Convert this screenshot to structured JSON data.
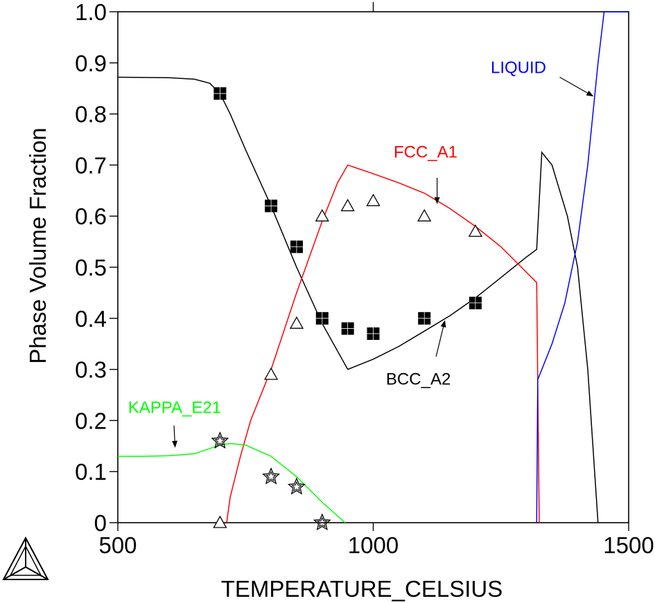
{
  "chart_data": {
    "type": "line",
    "xlabel": "TEMPERATURE_CELSIUS",
    "ylabel": "Phase Volume Fraction",
    "xlim": [
      500,
      1500
    ],
    "ylim": [
      0,
      1.0
    ],
    "x_ticks": [
      500,
      1000,
      1500
    ],
    "x_tick_labels": [
      "500",
      "1000",
      "1500"
    ],
    "y_ticks": [
      0,
      0.1,
      0.2,
      0.3,
      0.4,
      0.5,
      0.6,
      0.7,
      0.8,
      0.9,
      1.0
    ],
    "y_tick_labels": [
      "0",
      "0.1",
      "0.2",
      "0.3",
      "0.4",
      "0.5",
      "0.6",
      "0.7",
      "0.8",
      "0.9",
      "1.0"
    ],
    "grid": false,
    "series": [
      {
        "name": "BCC_A2",
        "color": "#000000",
        "label_at": [
          1025,
          0.27
        ],
        "arrow_from": [
          1123,
          0.325
        ],
        "arrow_to": [
          1140,
          0.395
        ],
        "points": [
          [
            500,
            0.872
          ],
          [
            600,
            0.871
          ],
          [
            650,
            0.868
          ],
          [
            680,
            0.86
          ],
          [
            700,
            0.84
          ],
          [
            720,
            0.8
          ],
          [
            750,
            0.73
          ],
          [
            800,
            0.62
          ],
          [
            850,
            0.5
          ],
          [
            900,
            0.39
          ],
          [
            950,
            0.3
          ],
          [
            1000,
            0.32
          ],
          [
            1050,
            0.345
          ],
          [
            1100,
            0.375
          ],
          [
            1150,
            0.405
          ],
          [
            1200,
            0.44
          ],
          [
            1250,
            0.48
          ],
          [
            1300,
            0.52
          ],
          [
            1320,
            0.535
          ],
          [
            1330,
            0.725
          ],
          [
            1350,
            0.7
          ],
          [
            1380,
            0.6
          ],
          [
            1400,
            0.5
          ],
          [
            1420,
            0.3
          ],
          [
            1440,
            0.0
          ]
        ]
      },
      {
        "name": "FCC_A1",
        "color": "#ff0000",
        "label_at": [
          1040,
          0.715
        ],
        "arrow_from": [
          1125,
          0.675
        ],
        "arrow_to": [
          1125,
          0.625
        ],
        "points": [
          [
            713,
            0.0
          ],
          [
            720,
            0.05
          ],
          [
            740,
            0.13
          ],
          [
            760,
            0.2
          ],
          [
            800,
            0.3
          ],
          [
            850,
            0.45
          ],
          [
            900,
            0.59
          ],
          [
            930,
            0.665
          ],
          [
            950,
            0.7
          ],
          [
            1000,
            0.683
          ],
          [
            1050,
            0.665
          ],
          [
            1100,
            0.645
          ],
          [
            1150,
            0.615
          ],
          [
            1200,
            0.58
          ],
          [
            1250,
            0.54
          ],
          [
            1300,
            0.49
          ],
          [
            1320,
            0.47
          ],
          [
            1325,
            0.0
          ]
        ]
      },
      {
        "name": "LIQUID",
        "color": "#0000ff",
        "label_at": [
          1230,
          0.88
        ],
        "arrow_from": [
          1365,
          0.872
        ],
        "arrow_to": [
          1430,
          0.835
        ],
        "points": [
          [
            1320,
            0.0
          ],
          [
            1322,
            0.28
          ],
          [
            1330,
            0.3
          ],
          [
            1350,
            0.35
          ],
          [
            1375,
            0.43
          ],
          [
            1400,
            0.55
          ],
          [
            1420,
            0.7
          ],
          [
            1440,
            0.9
          ],
          [
            1452,
            1.0
          ],
          [
            1500,
            1.0
          ]
        ]
      },
      {
        "name": "KAPPA_E21",
        "color": "#00ff00",
        "label_at": [
          520,
          0.215
        ],
        "arrow_from": [
          610,
          0.19
        ],
        "arrow_to": [
          612,
          0.148
        ],
        "points": [
          [
            500,
            0.13
          ],
          [
            550,
            0.13
          ],
          [
            600,
            0.131
          ],
          [
            650,
            0.135
          ],
          [
            700,
            0.152
          ],
          [
            720,
            0.155
          ],
          [
            750,
            0.152
          ],
          [
            800,
            0.13
          ],
          [
            850,
            0.09
          ],
          [
            900,
            0.04
          ],
          [
            945,
            0.0
          ]
        ]
      }
    ],
    "experimental": [
      {
        "marker": "filled-square",
        "for": "BCC_A2",
        "points": [
          [
            700,
            0.84
          ],
          [
            800,
            0.62
          ],
          [
            850,
            0.54
          ],
          [
            900,
            0.4
          ],
          [
            950,
            0.38
          ],
          [
            1000,
            0.37
          ],
          [
            1100,
            0.4
          ],
          [
            1200,
            0.43
          ]
        ]
      },
      {
        "marker": "open-triangle",
        "for": "FCC_A1",
        "points": [
          [
            700,
            0.0
          ],
          [
            800,
            0.29
          ],
          [
            850,
            0.39
          ],
          [
            900,
            0.6
          ],
          [
            950,
            0.62
          ],
          [
            1000,
            0.63
          ],
          [
            1100,
            0.6
          ],
          [
            1200,
            0.57
          ]
        ]
      },
      {
        "marker": "open-star",
        "for": "KAPPA_E21",
        "points": [
          [
            700,
            0.16
          ],
          [
            800,
            0.09
          ],
          [
            850,
            0.07
          ],
          [
            900,
            0.0
          ]
        ]
      }
    ],
    "logo": "thermo-calc-triangle-logo"
  }
}
